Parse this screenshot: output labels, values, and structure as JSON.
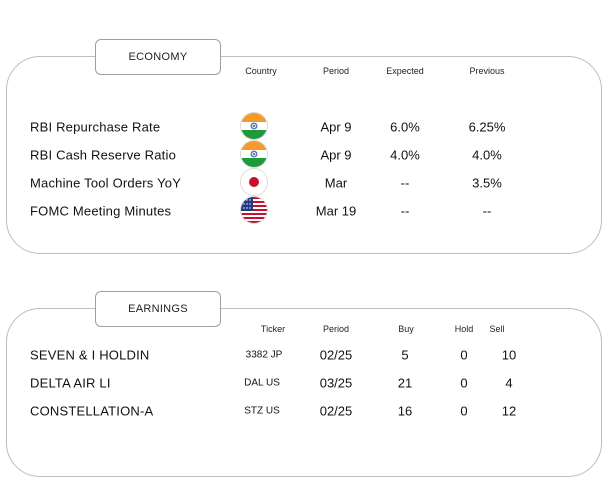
{
  "economy": {
    "title": "ECONOMY",
    "headers": {
      "country": "Country",
      "period": "Period",
      "expected": "Expected",
      "previous": "Previous"
    },
    "rows": [
      {
        "name": "RBI Repurchase Rate",
        "flag": "india-flag-icon",
        "period": "Apr 9",
        "expected": "6.0%",
        "previous": "6.25%"
      },
      {
        "name": "RBI Cash Reserve Ratio",
        "flag": "india-flag-icon",
        "period": "Apr 9",
        "expected": "4.0%",
        "previous": "4.0%"
      },
      {
        "name": "Machine Tool Orders YoY",
        "flag": "japan-flag-icon",
        "period": "Mar",
        "expected": "--",
        "previous": "3.5%"
      },
      {
        "name": "FOMC Meeting Minutes",
        "flag": "usa-flag-icon",
        "period": "Mar 19",
        "expected": "--",
        "previous": "--"
      }
    ]
  },
  "earnings": {
    "title": "EARNINGS",
    "headers": {
      "ticker": "Ticker",
      "period": "Period",
      "buy": "Buy",
      "hold": "Hold",
      "sell": "Sell"
    },
    "rows": [
      {
        "name": "SEVEN & I HOLDIN",
        "ticker": "3382 JP",
        "period": "02/25",
        "buy": "5",
        "hold": "0",
        "sell": "10"
      },
      {
        "name": "DELTA AIR LI",
        "ticker": "DAL US",
        "period": "03/25",
        "buy": "21",
        "hold": "0",
        "sell": "4"
      },
      {
        "name": "CONSTELLATION-A",
        "ticker": "STZ US",
        "period": "02/25",
        "buy": "16",
        "hold": "0",
        "sell": "12"
      }
    ]
  }
}
